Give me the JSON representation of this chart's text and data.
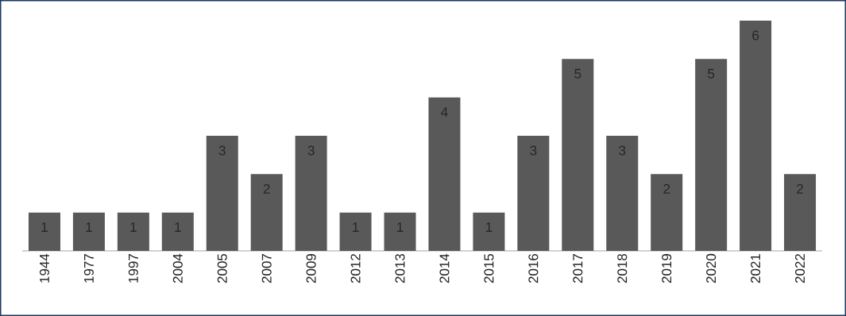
{
  "chart_data": {
    "type": "bar",
    "categories": [
      "1944",
      "1977",
      "1997",
      "2004",
      "2005",
      "2007",
      "2009",
      "2012",
      "2013",
      "2014",
      "2015",
      "2016",
      "2017",
      "2018",
      "2019",
      "2020",
      "2021",
      "2022"
    ],
    "values": [
      1,
      1,
      1,
      1,
      3,
      2,
      3,
      1,
      1,
      4,
      1,
      3,
      5,
      3,
      2,
      5,
      6,
      2
    ],
    "color": "#595959",
    "data_labels": true
  }
}
